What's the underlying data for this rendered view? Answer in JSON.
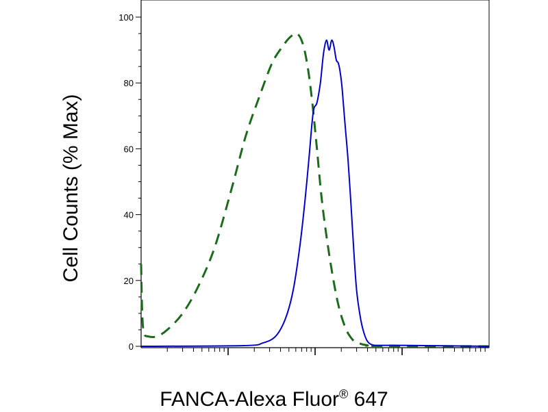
{
  "chart_data": {
    "type": "line",
    "title": "",
    "xlabel": "FANCA-Alexa Fluor",
    "xlabel_mark": "®",
    "xlabel_suffix": " 647",
    "ylabel": "Cell Counts (% Max)",
    "x_scale": "log",
    "xlim": [
      10,
      100000
    ],
    "ylim": [
      0,
      100
    ],
    "yticks": [
      0,
      20,
      40,
      60,
      80,
      100
    ],
    "ytick_labels": [
      "0",
      "20",
      "40",
      "60",
      "80",
      "100"
    ],
    "xtick_labels_shown": false,
    "grid": false,
    "legend": "none",
    "series": [
      {
        "style": "dashed",
        "color": "#1a6b1a",
        "x": [
          10,
          10.3,
          10.8,
          12,
          15,
          20,
          30,
          45,
          70,
          110,
          160,
          230,
          320,
          420,
          520,
          620,
          720,
          820,
          920,
          1050,
          1200,
          1450,
          1800,
          2200,
          2700,
          3300,
          4000,
          5000,
          100000
        ],
        "y": [
          25,
          10,
          4,
          3,
          3,
          5,
          10,
          18,
          30,
          48,
          64,
          76,
          86,
          91,
          94,
          95,
          92,
          85,
          75,
          60,
          44,
          28,
          14,
          6,
          2,
          0.8,
          0.3,
          0.1,
          0
        ]
      },
      {
        "style": "solid",
        "color": "#0000cc",
        "x": [
          10,
          150,
          250,
          350,
          450,
          550,
          650,
          750,
          850,
          950,
          1050,
          1150,
          1250,
          1350,
          1450,
          1550,
          1650,
          1750,
          1850,
          1950,
          2050,
          2200,
          2400,
          2600,
          2800,
          3000,
          3300,
          3600,
          4000,
          4600,
          5500,
          7000,
          10000,
          100000
        ],
        "y": [
          0,
          0.2,
          1,
          3,
          8,
          16,
          28,
          42,
          57,
          71,
          74,
          80,
          89,
          93,
          90,
          93,
          91,
          87,
          86,
          83,
          78,
          68,
          56,
          42,
          28,
          17,
          9,
          4.5,
          1.5,
          0.4,
          0.3,
          0.3,
          0.3,
          0
        ]
      }
    ]
  }
}
